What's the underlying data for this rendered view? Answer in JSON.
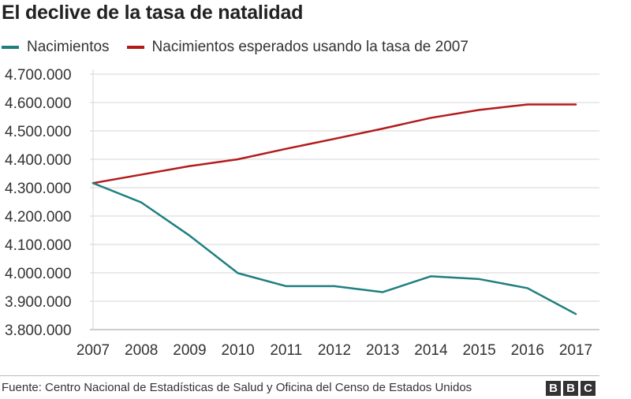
{
  "chart_data": {
    "type": "line",
    "title": "El declive de la tasa de natalidad",
    "x": [
      "2007",
      "2008",
      "2009",
      "2010",
      "2011",
      "2012",
      "2013",
      "2014",
      "2015",
      "2016",
      "2017"
    ],
    "series": [
      {
        "name": "Nacimientos",
        "color": "#1f7f7f",
        "values": [
          4316000,
          4248000,
          4131000,
          3999000,
          3953000,
          3953000,
          3932000,
          3988000,
          3978000,
          3946000,
          3855000
        ]
      },
      {
        "name": "Nacimientos esperados usando la tasa de 2007",
        "color": "#b31b1b",
        "values": [
          4316000,
          4346000,
          4376000,
          4400000,
          4437000,
          4472000,
          4508000,
          4546000,
          4574000,
          4593000,
          4593000
        ]
      }
    ],
    "yticks": [
      "4.700.000",
      "4.600.000",
      "4.500.000",
      "4.400.000",
      "4.300.000",
      "4.200.000",
      "4.100.000",
      "4.000.000",
      "3.900.000",
      "3.800.000"
    ],
    "ylim": [
      3800000,
      4700000
    ],
    "grid": true,
    "legend_position": "top-left"
  },
  "source": "Fuente: Centro Nacional de Estadísticas de Salud y Oficina del Censo de Estados Unidos",
  "logo": [
    "B",
    "B",
    "C"
  ]
}
